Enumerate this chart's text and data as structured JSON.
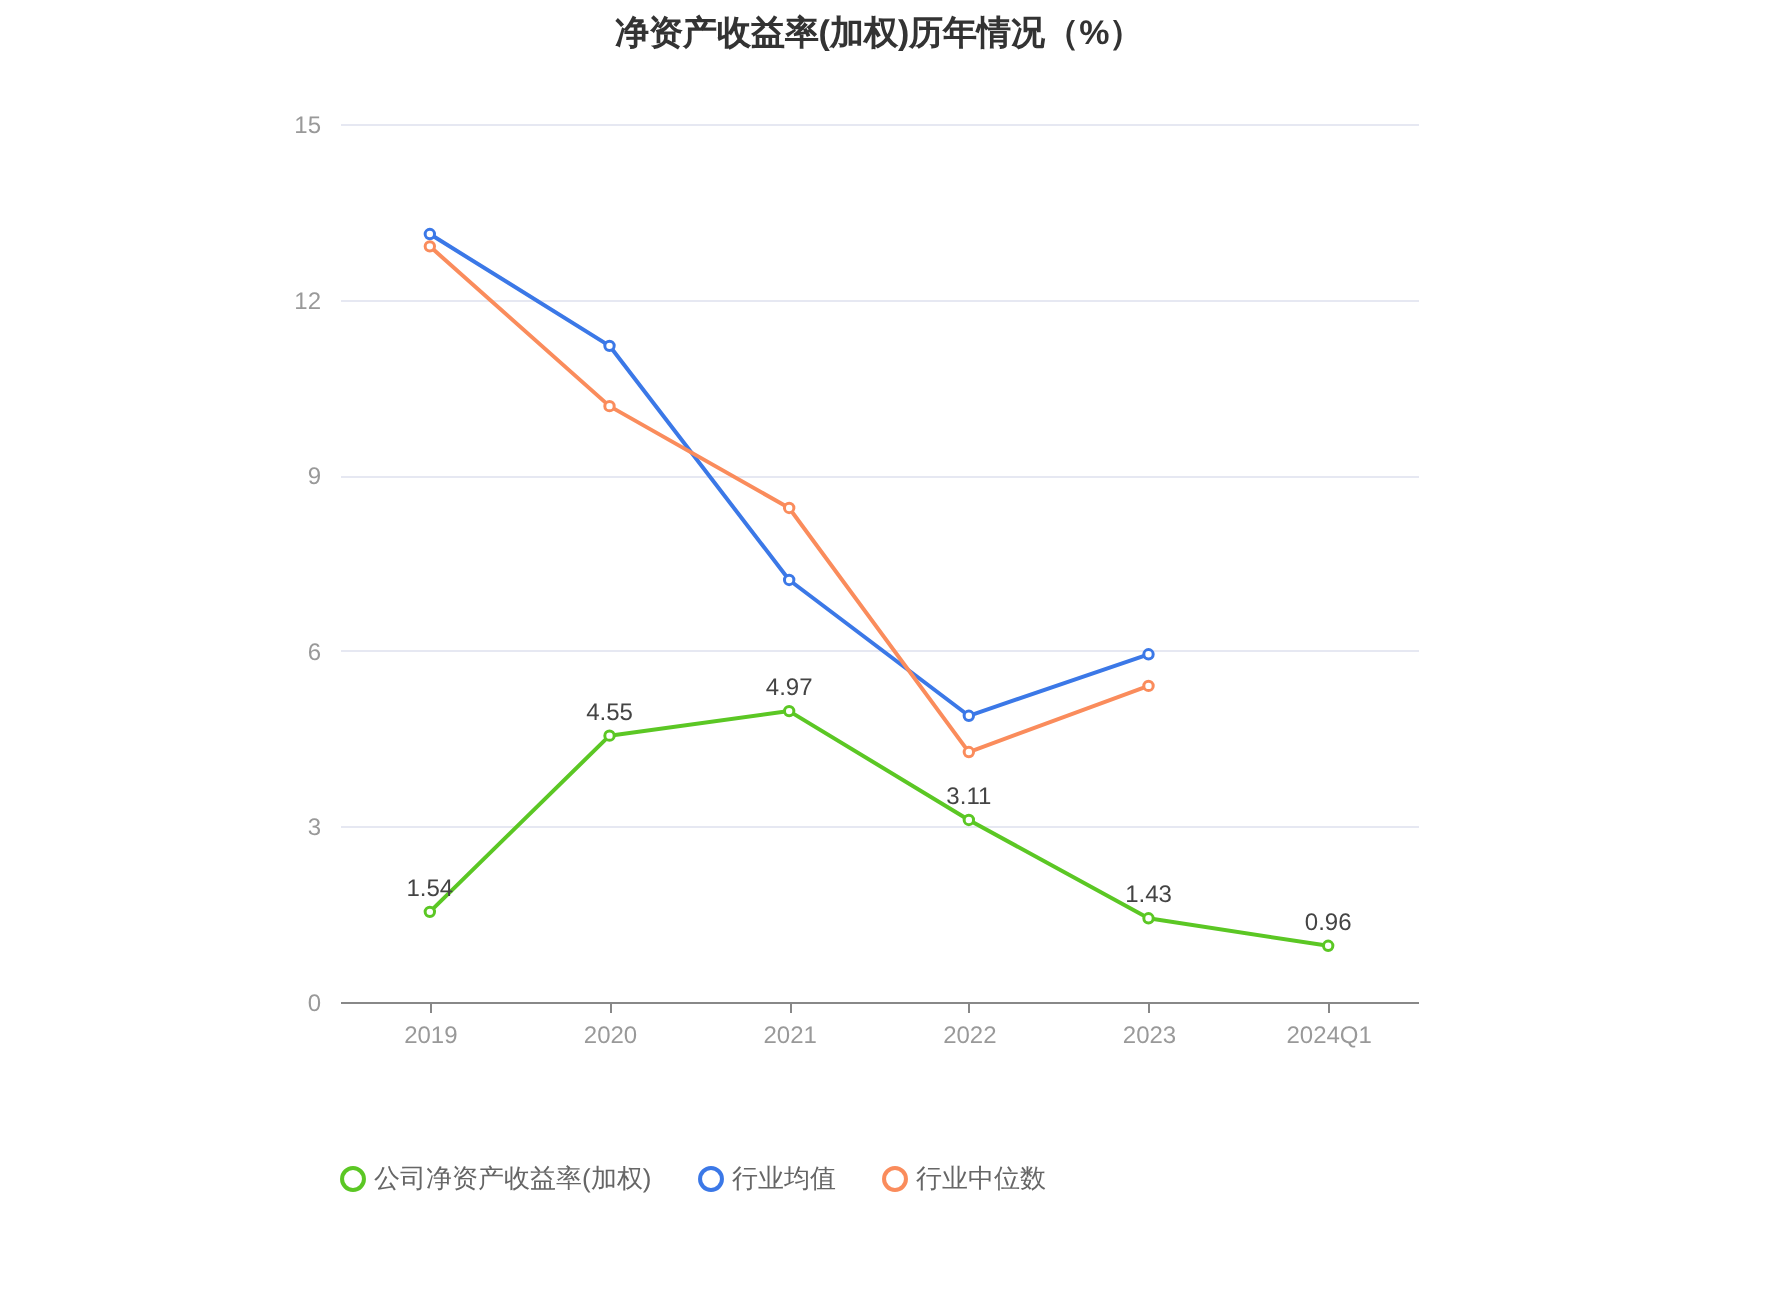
{
  "chart_data": {
    "type": "line",
    "title": "净资产收益率(加权)历年情况（%）",
    "categories": [
      "2019",
      "2020",
      "2021",
      "2022",
      "2023",
      "2024Q1"
    ],
    "series": [
      {
        "name": "公司净资产收益率(加权)",
        "color": "#5bc724",
        "values": [
          1.54,
          4.55,
          4.97,
          3.11,
          1.43,
          0.96
        ],
        "value_labels": [
          "1.54",
          "4.55",
          "4.97",
          "3.11",
          "1.43",
          "0.96"
        ]
      },
      {
        "name": "行业均值",
        "color": "#3b78e7",
        "values": [
          13.12,
          11.21,
          7.21,
          4.89,
          5.94,
          null
        ]
      },
      {
        "name": "行业中位数",
        "color": "#fa8c5c",
        "values": [
          12.91,
          10.18,
          8.44,
          4.27,
          5.4,
          null
        ]
      }
    ],
    "ylim": [
      0,
      15
    ],
    "yticks": [
      0,
      3,
      6,
      9,
      12,
      15
    ],
    "grid": "y",
    "legend": "bottom",
    "marker": "circle",
    "line_style": "solid"
  }
}
